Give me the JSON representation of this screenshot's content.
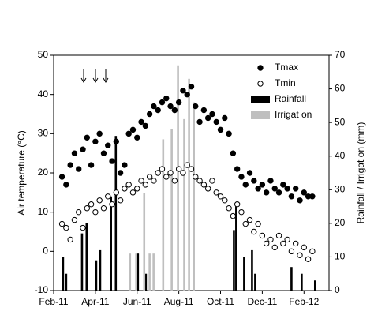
{
  "chart_data": {
    "type": "scatter",
    "y_label": "Air temperature (°C)",
    "y2_label": "Rainfall / Irrigat on (mm)",
    "xlim": [
      2,
      15.2
    ],
    "xticks": [
      {
        "value": 2,
        "label": "Feb-11"
      },
      {
        "value": 4,
        "label": "Apr-11"
      },
      {
        "value": 6,
        "label": "Jun-11"
      },
      {
        "value": 8,
        "label": "Aug-11"
      },
      {
        "value": 10,
        "label": "Oct-11"
      },
      {
        "value": 12,
        "label": "Dec-11"
      },
      {
        "value": 14,
        "label": "Feb-12"
      }
    ],
    "ylim": [
      -10,
      50
    ],
    "yticks": [
      -10,
      0,
      10,
      20,
      30,
      40,
      50
    ],
    "y2lim": [
      0,
      70
    ],
    "y2ticks": [
      0,
      10,
      20,
      30,
      40,
      50,
      60,
      70
    ],
    "legend": "top-right",
    "x": [
      2.4,
      2.6,
      2.8,
      3.0,
      3.2,
      3.4,
      3.6,
      3.8,
      4.0,
      4.2,
      4.4,
      4.6,
      4.8,
      5.0,
      5.2,
      5.4,
      5.6,
      5.8,
      6.0,
      6.2,
      6.4,
      6.6,
      6.8,
      7.0,
      7.2,
      7.4,
      7.6,
      7.8,
      8.0,
      8.2,
      8.4,
      8.6,
      8.8,
      9.0,
      9.2,
      9.4,
      9.6,
      9.8,
      10.0,
      10.2,
      10.4,
      10.6,
      10.8,
      11.0,
      11.2,
      11.4,
      11.6,
      11.8,
      12.0,
      12.2,
      12.4,
      12.6,
      12.8,
      13.0,
      13.2,
      13.4,
      13.6,
      13.8,
      14.0,
      14.2,
      14.4
    ],
    "series": [
      {
        "name": "Tmax",
        "color": "#000000",
        "values": [
          19,
          17,
          22,
          25,
          21,
          26,
          29,
          22,
          28,
          30,
          25,
          27,
          23,
          28,
          20,
          22,
          30,
          31,
          29,
          33,
          32,
          35,
          37,
          36,
          38,
          39,
          37,
          36,
          38,
          41,
          40,
          42,
          37,
          33,
          36,
          34,
          35,
          33,
          31,
          34,
          30,
          25,
          21,
          19,
          17,
          20,
          18,
          16,
          17,
          15,
          18,
          16,
          15,
          17,
          16,
          14,
          16,
          13,
          15,
          14,
          14
        ]
      },
      {
        "name": "Tmin",
        "color": "#ffffff",
        "values": [
          7,
          6,
          3,
          8,
          10,
          6,
          11,
          12,
          10,
          13,
          11,
          14,
          12,
          15,
          13,
          16,
          17,
          15,
          16,
          18,
          17,
          19,
          18,
          20,
          21,
          19,
          20,
          18,
          21,
          20,
          22,
          21,
          19,
          18,
          17,
          16,
          18,
          15,
          14,
          13,
          11,
          9,
          12,
          10,
          7,
          8,
          5,
          7,
          4,
          2,
          3,
          1,
          4,
          2,
          3,
          0,
          2,
          -1,
          1,
          -2,
          0
        ]
      },
      {
        "name": "Rainfall",
        "type": "bar",
        "axis": "y2",
        "color": "#000000",
        "x": [
          2.45,
          2.6,
          3.36,
          3.58,
          4.04,
          4.23,
          4.75,
          4.98,
          6.04,
          6.42,
          10.64,
          10.75,
          11.13,
          11.51,
          11.66,
          13.4,
          13.89,
          14.53
        ],
        "values": [
          10,
          5,
          17,
          20,
          9,
          12,
          28,
          46,
          11,
          5,
          18,
          25,
          10,
          12,
          5,
          7,
          5,
          3
        ]
      },
      {
        "name": "Irrigat on",
        "type": "bar",
        "axis": "y2",
        "color": "#bfbfbf",
        "x": [
          5.66,
          5.96,
          6.34,
          6.6,
          6.79,
          7.25,
          7.66,
          7.96,
          8.26,
          8.49,
          8.72
        ],
        "values": [
          11,
          11,
          29,
          11,
          11,
          45,
          48,
          67,
          51,
          63,
          56
        ]
      }
    ]
  }
}
